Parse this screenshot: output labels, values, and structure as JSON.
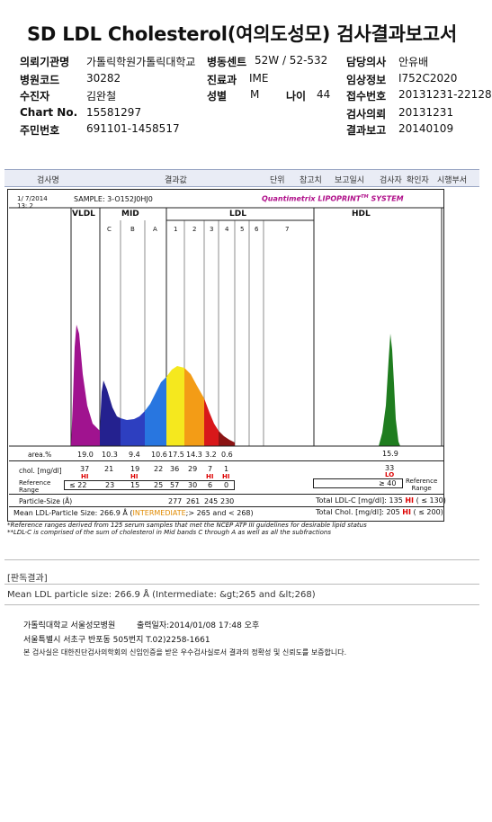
{
  "title": "SD LDL Cholesterol(여의도성모) 검사결과보고서",
  "patient": {
    "org_label": "의뢰기관명",
    "org_value": "가톨릭학원가톨릭대학교",
    "ward_label": "병동센트",
    "ward_value": "52W / 52-532",
    "doctor_label": "담당의사",
    "doctor_value": "안유배",
    "hosp_code_label": "병원코드",
    "hosp_code_value": "30282",
    "dept_label": "진료과",
    "dept_value": "IME",
    "clinical_label": "임상정보",
    "clinical_value": "I752C2020",
    "name_label": "수진자",
    "name_value": "김완철",
    "sex_label": "성별",
    "sex_value": "M",
    "age_label": "나이",
    "age_value": "44",
    "accession_label": "접수번호",
    "accession_value": "20131231-22128",
    "chart_label": "Chart No.",
    "chart_value": "15581297",
    "request_label": "검사의뢰",
    "request_value": "20131231",
    "rrn_label": "주민번호",
    "rrn_value": "691101-1458517",
    "report_label": "결과보고",
    "report_value": "20140109"
  },
  "header_bar": {
    "test_name": "검사명",
    "result": "결과값",
    "unit": "단위",
    "reference": "참고치",
    "report_date": "보고일시",
    "examiner": "검사자",
    "confirmer": "확인자",
    "test_dept": "시행부서"
  },
  "report": {
    "date": "1/ 7/2014",
    "time": "13: 2",
    "sample": "SAMPLE:  3-O152J0HJ0",
    "brand": "Quantimetrix LIPOPRINT",
    "brand_tm": "TM",
    "brand_system": " SYSTEM",
    "vldl": "VLDL",
    "mid": "MID",
    "ldl": "LDL",
    "hdl": "HDL",
    "mid_bands": [
      "C",
      "B",
      "A"
    ],
    "ldl_bands": [
      "1",
      "2",
      "3",
      "4",
      "5",
      "6",
      "7"
    ],
    "area_label": "area.%",
    "area_values": [
      "19.0",
      "10.3",
      "9.4",
      "10.6",
      "17.5",
      "14.3",
      "3.2",
      "0.6"
    ],
    "area_hdl": "15.9",
    "chol_label": "chol. [mg/dl]",
    "chol_values": [
      "37",
      "21",
      "19",
      "22",
      "36",
      "29",
      "7",
      "1"
    ],
    "chol_hdl": "33",
    "chol_flags": [
      "HI",
      "",
      "HI",
      "",
      "",
      "",
      "HI",
      "HI"
    ],
    "hdl_flag": "LO",
    "ref_label": "Reference\nRange",
    "ref_values": [
      "≤ 22",
      "23",
      "15",
      "25",
      "57",
      "30",
      "6",
      "0"
    ],
    "ref_hdl": "≥ 40",
    "ref_right": "Reference\nRange",
    "particle_label": "Particle-Size (Å)",
    "particle_values": [
      "277",
      "261",
      "245",
      "230"
    ],
    "mean_label": "Mean LDL-Particle Size:",
    "mean_value": "266.9 Å",
    "mean_class": "INTERMEDIATE",
    "mean_range": ";> 265 and < 268)",
    "total_ldl_label": "Total LDL-C [mg/dl]:",
    "total_ldl_value": "135",
    "total_ldl_flag": "HI",
    "total_ldl_ref": "( ≤ 130)",
    "total_chol_label": "Total Chol. [mg/dl]:",
    "total_chol_value": "205",
    "total_chol_flag": "HI",
    "total_chol_ref": "( ≤ 200)",
    "note1": "*Reference ranges derived from 125 serum samples that met the NCEP ATP III guidelines for desirable lipid status",
    "note2": "**LDL-C is comprised of the sum of cholesterol in Mid bands C through A as well as all the subfractions"
  },
  "interpretation": {
    "label": "[판독결과]",
    "text": "Mean LDL particle size: 266.9 Å (Intermediate: &gt;265 and &lt;268)"
  },
  "footer": {
    "line1_org": "가톨릭대학교 서울성모병원",
    "line1_print": "출력일자:2014/01/08 17:48 오후",
    "line2": "서울특별시 서초구 반포동 505번지 T.02)2258-1661",
    "line3": "본 검사실은 대한진단검사의학회의 신임인증을 받은 우수검사실로서 결과의 정확성 및 신뢰도를 보증합니다."
  }
}
